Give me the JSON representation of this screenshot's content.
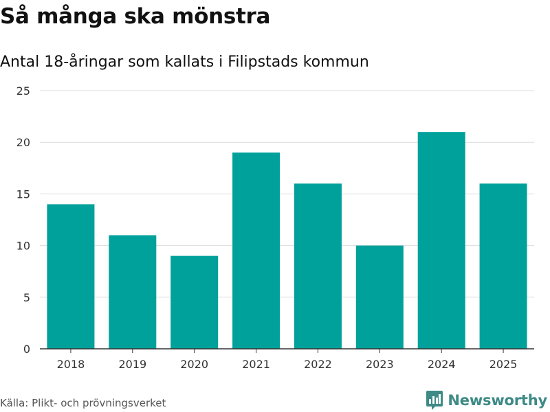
{
  "header": {
    "title": "Så många ska mönstra",
    "subtitle": "Antal 18-åringar som kallats i Filipstads kommun"
  },
  "chart_data": {
    "type": "bar",
    "categories": [
      "2018",
      "2019",
      "2020",
      "2021",
      "2022",
      "2023",
      "2024",
      "2025"
    ],
    "values": [
      14,
      11,
      9,
      19,
      16,
      10,
      21,
      16
    ],
    "ylim": [
      0,
      25
    ],
    "yticks": [
      "0",
      "5",
      "10",
      "15",
      "20",
      "25"
    ],
    "xlabel": "",
    "ylabel": "",
    "grid": true,
    "bar_color": "#00a19a"
  },
  "footer": {
    "source": "Källa: Plikt- och prövningsverket",
    "brand": "Newsworthy",
    "brand_color": "#3d8a86"
  }
}
